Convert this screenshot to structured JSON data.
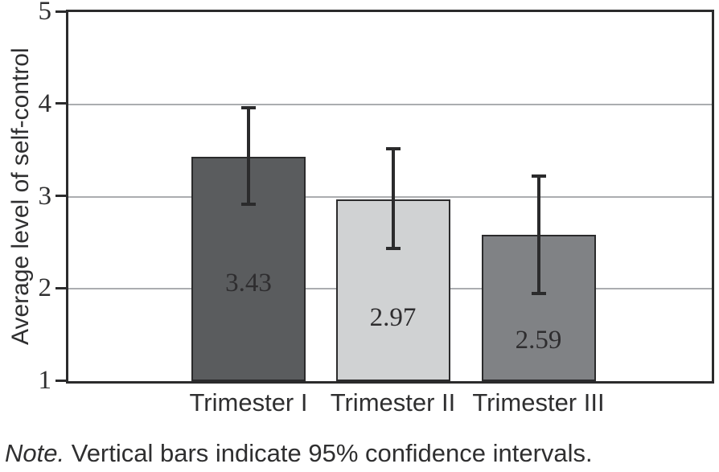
{
  "chart_data": {
    "type": "bar",
    "categories": [
      "Trimester I",
      "Trimester II",
      "Trimester III"
    ],
    "values": [
      3.43,
      2.97,
      2.59
    ],
    "value_labels": [
      "3.43",
      "2.97",
      "2.59"
    ],
    "error_low": [
      2.92,
      2.44,
      1.95
    ],
    "error_high": [
      3.96,
      3.52,
      3.22
    ],
    "bar_colors": [
      "#5a5c5e",
      "#d0d2d3",
      "#808285"
    ],
    "title": "",
    "xlabel": "",
    "ylabel": "Average level of self-control",
    "ylim": [
      1,
      5
    ],
    "yticks": [
      1,
      2,
      3,
      4,
      5
    ],
    "grid": "horizontal-inner",
    "legend": "none",
    "colors": {
      "ink": "#2b2b2c",
      "grid_line": "#abadb0",
      "error_bar": "#2b2b2c",
      "text": "#2f2f30"
    }
  },
  "note": {
    "label": "Note.",
    "text": " Vertical bars indicate 95% confidence intervals."
  }
}
